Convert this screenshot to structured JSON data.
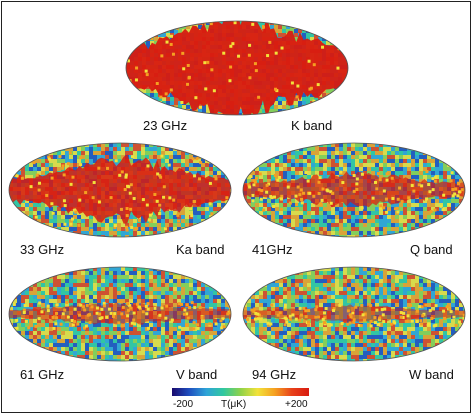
{
  "maps": [
    {
      "freq": "23 GHz",
      "band": "K band",
      "plane": 0.95,
      "galaxy_halfwidth": 0.42
    },
    {
      "freq": "33 GHz",
      "band": "Ka band",
      "plane": 0.85,
      "galaxy_halfwidth": 0.26
    },
    {
      "freq": "41GHz",
      "band": "Q band",
      "plane": 0.7,
      "galaxy_halfwidth": 0.14
    },
    {
      "freq": "61 GHz",
      "band": "V band",
      "plane": 0.55,
      "galaxy_halfwidth": 0.09
    },
    {
      "freq": "94 GHz",
      "band": "W band",
      "plane": 0.5,
      "galaxy_halfwidth": 0.07
    }
  ],
  "colorbar": {
    "min_label": "-200",
    "unit_label": "T(μK)",
    "max_label": "+200",
    "colors": [
      "#1a0a6e",
      "#1f4fbf",
      "#2fa3d8",
      "#30c8a0",
      "#8fd24a",
      "#f2e23a",
      "#f5a021",
      "#e8411a",
      "#d81b10"
    ]
  }
}
